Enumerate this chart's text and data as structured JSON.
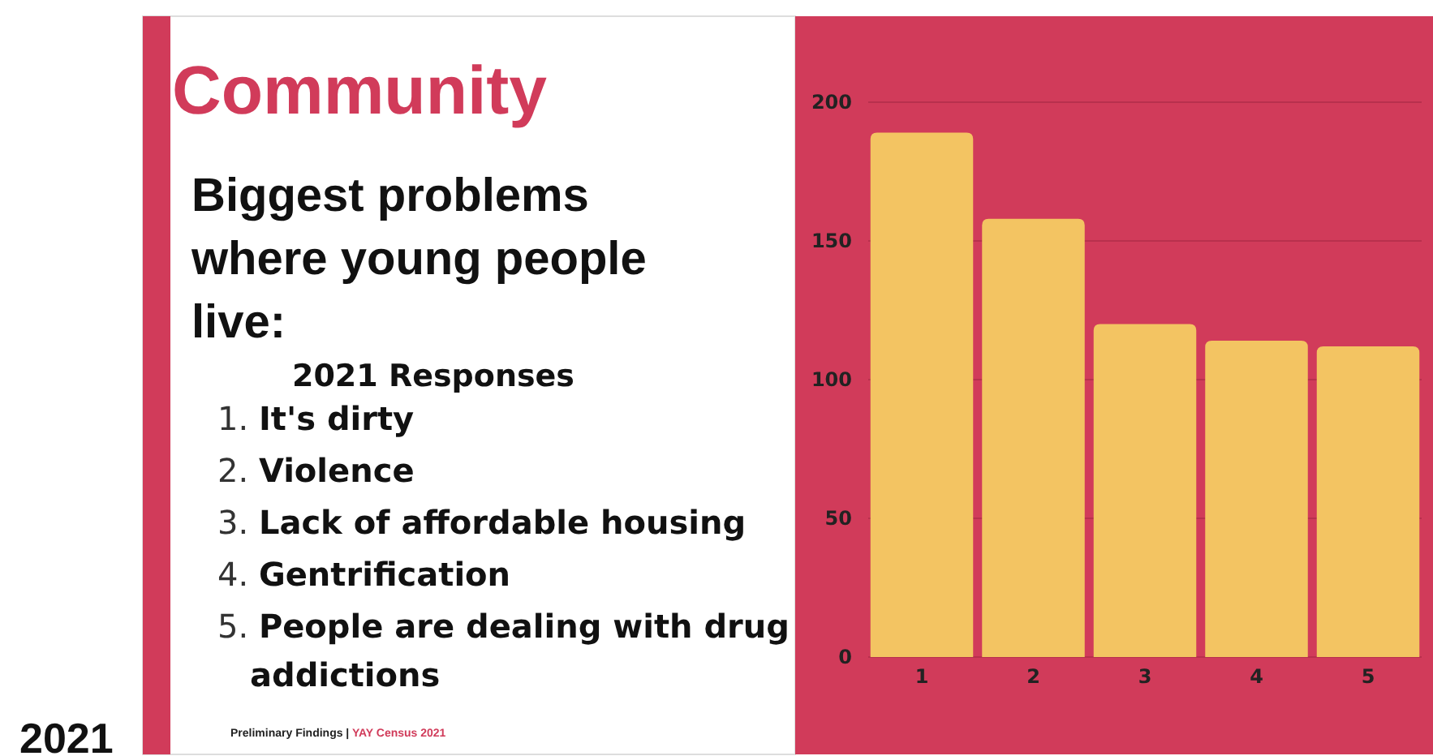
{
  "chart_data": {
    "type": "bar",
    "title": "Community",
    "subtitle": "Biggest problems where young people live:",
    "categories": [
      "1",
      "2",
      "3",
      "4",
      "5"
    ],
    "values": [
      189,
      158,
      120,
      114,
      112
    ],
    "color": "#f3c462",
    "ylim": [
      0,
      200
    ],
    "yticks": [
      0,
      50,
      100,
      150,
      200
    ],
    "grid": "y",
    "annotations": [
      "2021 Responses",
      "1. It's dirty",
      "2. Violence",
      "3. Lack of affordable housing",
      "4. Gentrification",
      "5. People are dealing with drug addictions",
      "Preliminary Findings | YAY Census 2021",
      "2021"
    ]
  }
}
